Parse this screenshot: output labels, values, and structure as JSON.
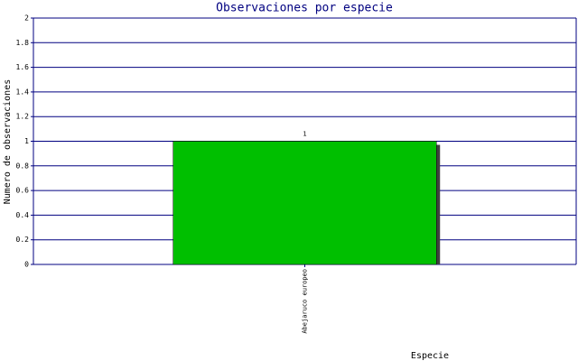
{
  "chart_data": {
    "type": "bar",
    "title": "Observaciones por especie",
    "x_label": "Especie",
    "y_label": "Numero de observaciones",
    "categories": [
      "Abejaruco europeo"
    ],
    "values": [
      1
    ],
    "color": "#00bf00",
    "ylim": [
      0,
      2
    ],
    "yticks": [
      0,
      0.2,
      0.4,
      0.6,
      0.8,
      1,
      1.2,
      1.4,
      1.6,
      1.8,
      2
    ],
    "grid": true
  }
}
